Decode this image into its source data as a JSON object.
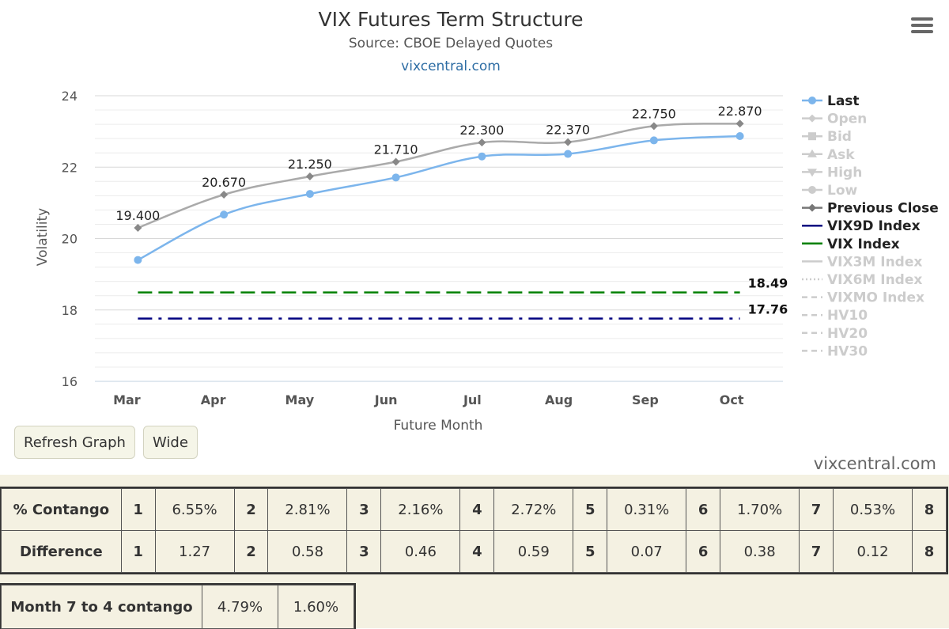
{
  "header": {
    "title": "VIX Futures Term Structure",
    "subtitle": "Source: CBOE Delayed Quotes",
    "site_link": "vixcentral.com"
  },
  "chart_data": {
    "type": "line",
    "xlabel": "Future Month",
    "ylabel": "Volatility",
    "categories": [
      "Mar",
      "Apr",
      "May",
      "Jun",
      "Jul",
      "Aug",
      "Sep",
      "Oct"
    ],
    "ylim": [
      16,
      24
    ],
    "yticks": [
      16,
      18,
      20,
      22,
      24
    ],
    "ytick_labels": [
      "16",
      "18",
      "20",
      "22",
      "24"
    ],
    "grid": true,
    "legend_position": "right",
    "series": [
      {
        "name": "Last",
        "values": [
          19.4,
          20.67,
          21.25,
          21.71,
          22.3,
          22.37,
          22.75,
          22.87
        ],
        "color": "#7cb5ec",
        "marker": "circle",
        "style": "solid",
        "smooth": true
      },
      {
        "name": "Previous Close",
        "values": [
          20.3,
          21.23,
          21.74,
          22.15,
          22.69,
          22.7,
          23.15,
          23.22
        ],
        "color": "#aaaaaa",
        "marker": "diamond",
        "style": "solid",
        "smooth": true
      },
      {
        "name": "VIX9D Index",
        "values": [
          17.76,
          17.76,
          17.76,
          17.76,
          17.76,
          17.76,
          17.76,
          17.76
        ],
        "color": "#000080",
        "style": "dashdot"
      },
      {
        "name": "VIX Index",
        "values": [
          18.49,
          18.49,
          18.49,
          18.49,
          18.49,
          18.49,
          18.49,
          18.49
        ],
        "color": "#008000",
        "style": "dashed"
      }
    ],
    "data_labels": [
      "19.400",
      "20.670",
      "21.250",
      "21.710",
      "22.300",
      "22.370",
      "22.750",
      "22.870"
    ],
    "end_labels": [
      "18.49",
      "17.76"
    ],
    "legend": [
      {
        "label": "Last",
        "active": true,
        "color": "#7cb5ec",
        "symbol": "circle"
      },
      {
        "label": "Open",
        "active": false,
        "color": "#cccccc",
        "symbol": "diamond"
      },
      {
        "label": "Bid",
        "active": false,
        "color": "#cccccc",
        "symbol": "square"
      },
      {
        "label": "Ask",
        "active": false,
        "color": "#cccccc",
        "symbol": "triangle"
      },
      {
        "label": "High",
        "active": false,
        "color": "#cccccc",
        "symbol": "triangle-down"
      },
      {
        "label": "Low",
        "active": false,
        "color": "#cccccc",
        "symbol": "circle"
      },
      {
        "label": "Previous Close",
        "active": true,
        "color": "#777777",
        "symbol": "diamond"
      },
      {
        "label": "VIX9D Index",
        "active": true,
        "color": "#000080",
        "symbol": "line"
      },
      {
        "label": "VIX Index",
        "active": true,
        "color": "#008000",
        "symbol": "line"
      },
      {
        "label": "VIX3M Index",
        "active": false,
        "color": "#cccccc",
        "symbol": "line"
      },
      {
        "label": "VIX6M Index",
        "active": false,
        "color": "#cccccc",
        "symbol": "dotted"
      },
      {
        "label": "VIXMO Index",
        "active": false,
        "color": "#cccccc",
        "symbol": "dashed"
      },
      {
        "label": "HV10",
        "active": false,
        "color": "#cccccc",
        "symbol": "dashed"
      },
      {
        "label": "HV20",
        "active": false,
        "color": "#cccccc",
        "symbol": "dashed"
      },
      {
        "label": "HV30",
        "active": false,
        "color": "#cccccc",
        "symbol": "dashed"
      }
    ]
  },
  "buttons": {
    "refresh_label": "Refresh Graph",
    "wide_label": "Wide"
  },
  "watermark": "vixcentral.com",
  "contango_table": {
    "rows": [
      {
        "label": "% Contango",
        "cells": [
          [
            "1",
            "6.55%"
          ],
          [
            "2",
            "2.81%"
          ],
          [
            "3",
            "2.16%"
          ],
          [
            "4",
            "2.72%"
          ],
          [
            "5",
            "0.31%"
          ],
          [
            "6",
            "1.70%"
          ],
          [
            "7",
            "0.53%"
          ],
          [
            "8",
            ""
          ]
        ]
      },
      {
        "label": "Difference",
        "cells": [
          [
            "1",
            "1.27"
          ],
          [
            "2",
            "0.58"
          ],
          [
            "3",
            "0.46"
          ],
          [
            "4",
            "0.59"
          ],
          [
            "5",
            "0.07"
          ],
          [
            "6",
            "0.38"
          ],
          [
            "7",
            "0.12"
          ],
          [
            "8",
            ""
          ]
        ]
      }
    ]
  },
  "month_contango": {
    "label": "Month 7 to 4 contango",
    "values": [
      "4.79%",
      "1.60%"
    ]
  }
}
